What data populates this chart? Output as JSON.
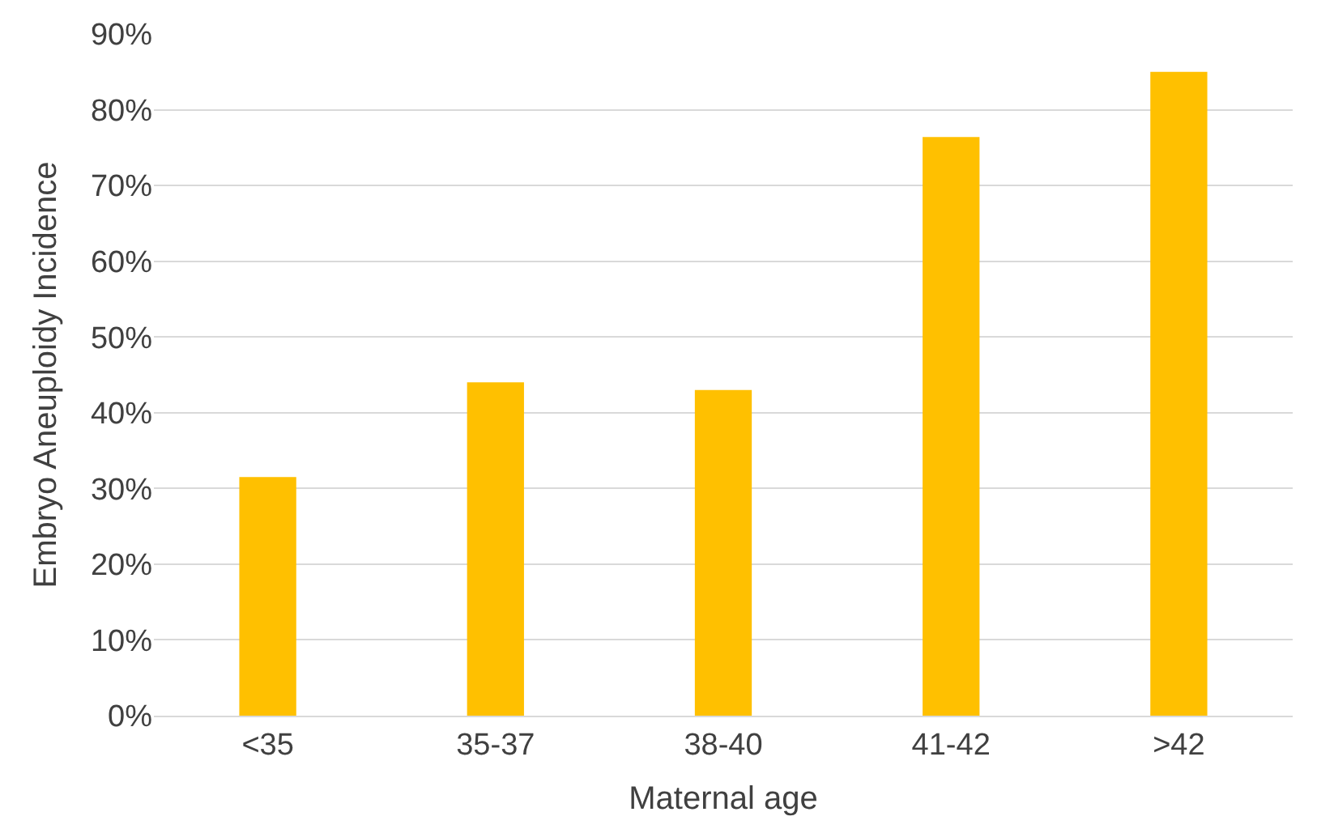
{
  "chart_data": {
    "type": "bar",
    "xlabel": "Maternal age",
    "ylabel": "Embryo Aneuploidy Incidence",
    "categories": [
      "<35",
      "35-37",
      "38-40",
      "41-42",
      ">42"
    ],
    "values": [
      31.5,
      44,
      43,
      76.4,
      85
    ],
    "color": "#ffc000",
    "ylim": [
      0,
      90
    ],
    "yticks": [
      {
        "value": 0,
        "label": "0%"
      },
      {
        "value": 10,
        "label": "10%"
      },
      {
        "value": 20,
        "label": "20%"
      },
      {
        "value": 30,
        "label": "30%"
      },
      {
        "value": 40,
        "label": "40%"
      },
      {
        "value": 50,
        "label": "50%"
      },
      {
        "value": 60,
        "label": "60%"
      },
      {
        "value": 70,
        "label": "70%"
      },
      {
        "value": 80,
        "label": "80%"
      },
      {
        "value": 90,
        "label": "90%"
      }
    ],
    "grid": "y"
  }
}
